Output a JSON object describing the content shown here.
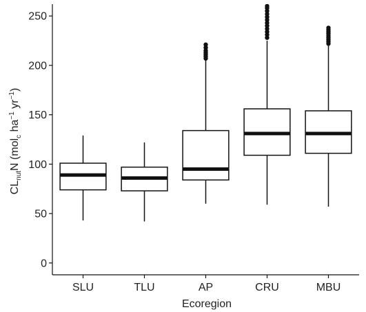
{
  "chart_data": {
    "type": "boxplot",
    "xlabel": "Ecoregion",
    "ylabel": {
      "parts": [
        {
          "text": "CL",
          "shift": "base"
        },
        {
          "text": "nut",
          "shift": "sub"
        },
        {
          "text": "N (mol",
          "shift": "base"
        },
        {
          "text": "c",
          "shift": "sub"
        },
        {
          "text": " ha",
          "shift": "base"
        },
        {
          "text": "−1",
          "shift": "super"
        },
        {
          "text": " yr",
          "shift": "base"
        },
        {
          "text": "−1",
          "shift": "super"
        },
        {
          "text": ")",
          "shift": "base"
        }
      ]
    },
    "ylim": [
      -12,
      262
    ],
    "yticks": [
      0,
      50,
      100,
      150,
      200,
      250
    ],
    "categories": [
      "SLU",
      "TLU",
      "AP",
      "CRU",
      "MBU"
    ],
    "boxes": [
      {
        "category": "SLU",
        "whisker_low": 43,
        "q1": 74,
        "median": 89,
        "q3": 101,
        "whisker_high": 129,
        "outliers": []
      },
      {
        "category": "TLU",
        "whisker_low": 42,
        "q1": 73,
        "median": 86,
        "q3": 97,
        "whisker_high": 122,
        "outliers": []
      },
      {
        "category": "AP",
        "whisker_low": 60,
        "q1": 84,
        "median": 95,
        "q3": 134,
        "whisker_high": 205,
        "outliers": [
          207,
          209,
          211,
          213,
          215,
          218,
          221
        ]
      },
      {
        "category": "CRU",
        "whisker_low": 59,
        "q1": 109,
        "median": 131,
        "q3": 156,
        "whisker_high": 225,
        "outliers": [
          228,
          231,
          234,
          237,
          240,
          243,
          246,
          249,
          252,
          255,
          258,
          260
        ]
      },
      {
        "category": "MBU",
        "whisker_low": 57,
        "q1": 111,
        "median": 131,
        "q3": 154,
        "whisker_high": 220,
        "outliers": [
          222,
          224,
          226,
          228,
          230,
          232,
          234,
          236,
          238
        ]
      }
    ],
    "grid": false,
    "legend": "none"
  }
}
